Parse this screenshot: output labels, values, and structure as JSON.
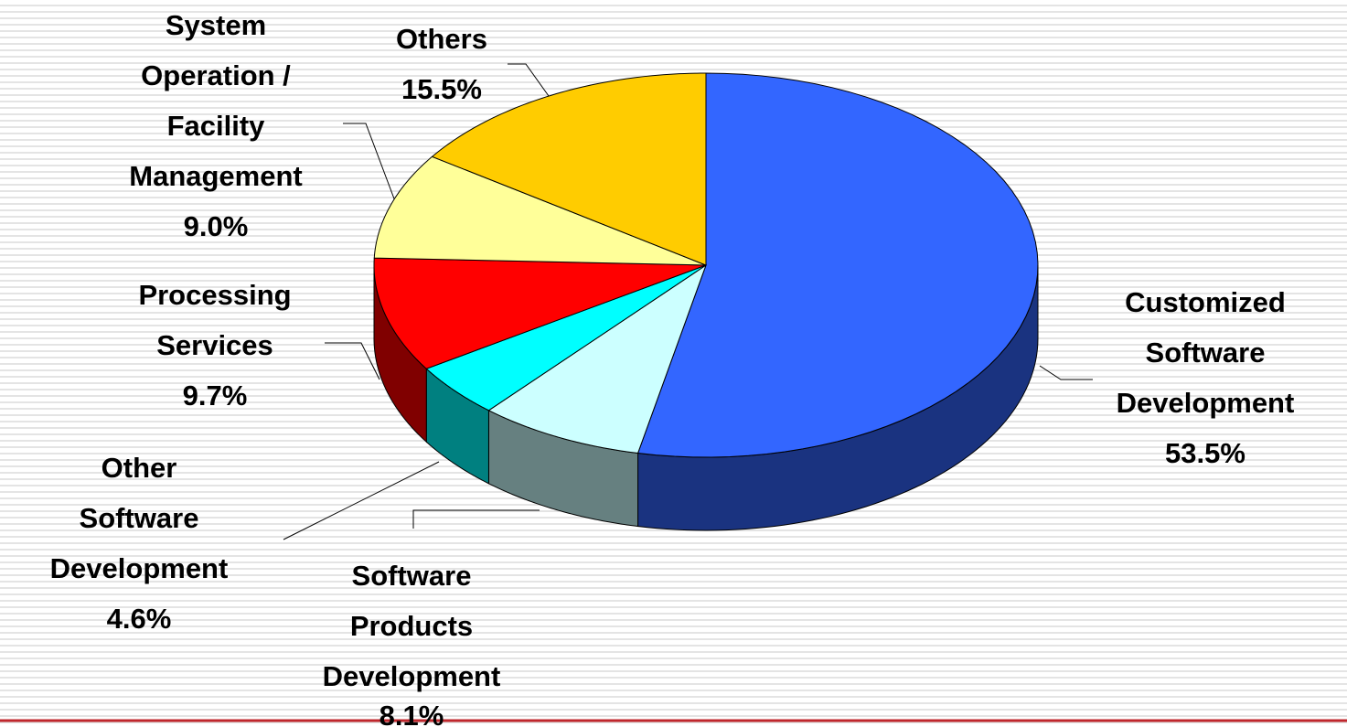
{
  "chart_data": {
    "type": "pie3d",
    "categories": [
      "Customized\nSoftware\nDevelopment",
      "Software\nProducts\nDevelopment",
      "Other\nSoftware\nDevelopment",
      "Processing\nServices",
      "System\nOperation /\nFacility\nManagement",
      "Others"
    ],
    "values": [
      53.5,
      8.1,
      4.6,
      9.7,
      9.0,
      15.5
    ],
    "value_labels": [
      "53.5%",
      "8.1%",
      "4.6%",
      "9.7%",
      "9.0%",
      "15.5%"
    ],
    "colors": [
      "#3366ff",
      "#ccffff",
      "#00ffff",
      "#ff0000",
      "#ffff99",
      "#ffcc00"
    ],
    "side_colors": [
      "#1a3380",
      "#668080",
      "#008080",
      "#800000",
      "#80804d",
      "#806600"
    ]
  }
}
